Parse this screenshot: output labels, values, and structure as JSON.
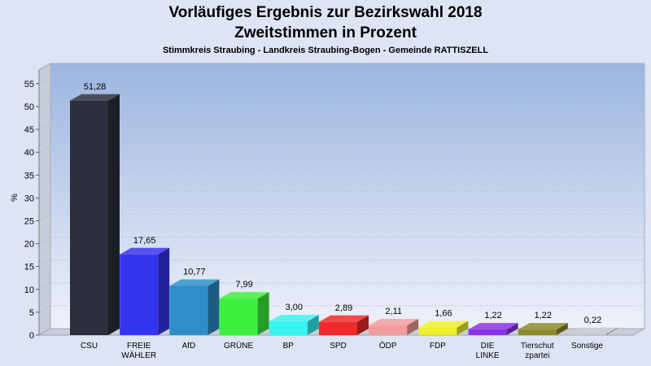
{
  "chart_data": {
    "type": "bar",
    "title": "Vorläufiges Ergebnis zur Bezirkswahl 2018",
    "subtitle": "Zweitstimmen in Prozent",
    "subsubtitle": "Stimmkreis Straubing - Landkreis Straubing-Bogen - Gemeinde RATTISZELL",
    "ylabel": "%",
    "xlabel": "",
    "ylim": [
      0,
      58
    ],
    "yticks": [
      0,
      5,
      10,
      15,
      20,
      25,
      30,
      35,
      40,
      45,
      50,
      55
    ],
    "grid": true,
    "legend": "none",
    "categories": [
      [
        "CSU"
      ],
      [
        "FREIE",
        "WÄHLER"
      ],
      [
        "AfD"
      ],
      [
        "GRÜNE"
      ],
      [
        "BP"
      ],
      [
        "SPD"
      ],
      [
        "ÖDP"
      ],
      [
        "FDP"
      ],
      [
        "DIE",
        "LINKE"
      ],
      [
        "Tierschut",
        "zpartei"
      ],
      [
        "Sonstige"
      ]
    ],
    "values": [
      51.28,
      17.65,
      10.77,
      7.99,
      3.0,
      2.89,
      2.11,
      1.66,
      1.22,
      1.22,
      0.22
    ],
    "value_labels": [
      "51,28",
      "17,65",
      "10,77",
      "7,99",
      "3,00",
      "2,89",
      "2,11",
      "1,66",
      "1,22",
      "1,22",
      "0,22"
    ],
    "colors": [
      "#2b2f3b",
      "#3535f0",
      "#2e8fc8",
      "#3df03d",
      "#3bf2f2",
      "#ee2a2a",
      "#f29b9b",
      "#eeee2e",
      "#8a32e8",
      "#8a8a2c",
      "#c2c6cf"
    ]
  }
}
